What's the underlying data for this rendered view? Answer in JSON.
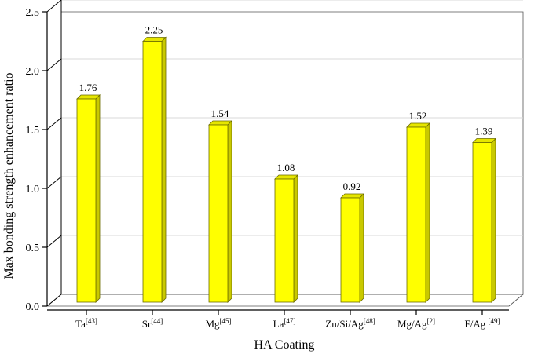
{
  "chart_data": {
    "type": "bar",
    "title": "",
    "xlabel": "HA Coating",
    "ylabel": "Max bonding strength enhancement ratio",
    "ylim": [
      0,
      2.5
    ],
    "yticks": [
      "0.0",
      "0.5",
      "1.0",
      "1.5",
      "2.0",
      "2.5"
    ],
    "grid": true,
    "style": "3d",
    "bar_color": "#ffff00",
    "categories": [
      {
        "base": "Ta",
        "ref": "[43]"
      },
      {
        "base": "Sr",
        "ref": "[44]"
      },
      {
        "base": "Mg",
        "ref": "[45]"
      },
      {
        "base": "La",
        "ref": "[47]"
      },
      {
        "base": "Zn/Si/Ag",
        "ref": "[48]"
      },
      {
        "base": "Mg/Ag",
        "ref": "[2]"
      },
      {
        "base": "F/Ag ",
        "ref": "[49]"
      }
    ],
    "values": [
      1.76,
      2.25,
      1.54,
      1.08,
      0.92,
      1.52,
      1.39
    ],
    "value_labels": [
      "1.76",
      "2.25",
      "1.54",
      "1.08",
      "0.92",
      "1.52",
      "1.39"
    ]
  }
}
